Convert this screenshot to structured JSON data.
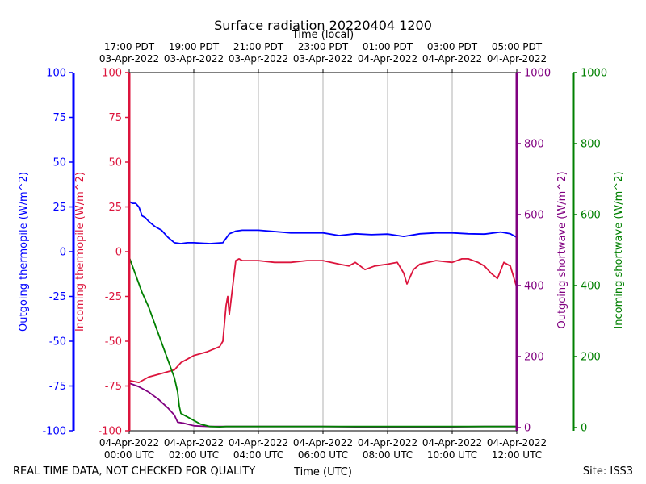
{
  "chart_data": {
    "type": "line",
    "title": "Surface radiation 20220404 1200",
    "top_xlabel": "Time (local)",
    "bottom_xlabel": "Time (UTC)",
    "footer_left": "REAL TIME DATA, NOT CHECKED FOR QUALITY",
    "footer_right": "Site: ISS3",
    "x_range_hours": [
      0,
      12
    ],
    "bottom_ticks": [
      {
        "h": 0,
        "line1": "04-Apr-2022",
        "line2": "00:00 UTC"
      },
      {
        "h": 2,
        "line1": "04-Apr-2022",
        "line2": "02:00 UTC"
      },
      {
        "h": 4,
        "line1": "04-Apr-2022",
        "line2": "04:00 UTC"
      },
      {
        "h": 6,
        "line1": "04-Apr-2022",
        "line2": "06:00 UTC"
      },
      {
        "h": 8,
        "line1": "04-Apr-2022",
        "line2": "08:00 UTC"
      },
      {
        "h": 10,
        "line1": "04-Apr-2022",
        "line2": "10:00 UTC"
      },
      {
        "h": 12,
        "line1": "04-Apr-2022",
        "line2": "12:00 UTC"
      }
    ],
    "top_ticks": [
      {
        "h": 0,
        "line1": "17:00 PDT",
        "line2": "03-Apr-2022"
      },
      {
        "h": 2,
        "line1": "19:00 PDT",
        "line2": "03-Apr-2022"
      },
      {
        "h": 4,
        "line1": "21:00 PDT",
        "line2": "03-Apr-2022"
      },
      {
        "h": 6,
        "line1": "23:00 PDT",
        "line2": "03-Apr-2022"
      },
      {
        "h": 8,
        "line1": "01:00 PDT",
        "line2": "04-Apr-2022"
      },
      {
        "h": 10,
        "line1": "03:00 PDT",
        "line2": "04-Apr-2022"
      },
      {
        "h": 12,
        "line1": "05:00 PDT",
        "line2": "04-Apr-2022"
      }
    ],
    "axes": [
      {
        "id": "outgoing-thermopile",
        "label": "Outgoing thermopile (W/m^2)",
        "color": "#0000ff",
        "ylim": [
          -100,
          100
        ],
        "ticks": [
          -100,
          -75,
          -50,
          -25,
          0,
          25,
          50,
          75,
          100
        ],
        "side": "left-outer"
      },
      {
        "id": "incoming-thermopile",
        "label": "Incoming thermopile (W/m^2)",
        "color": "#dc143c",
        "ylim": [
          -100,
          100
        ],
        "ticks": [
          -100,
          -75,
          -50,
          -25,
          0,
          25,
          50,
          75,
          100
        ],
        "side": "left-inner"
      },
      {
        "id": "outgoing-shortwave",
        "label": "Outgoing shortwave (W/m^2)",
        "color": "#800080",
        "ylim": [
          0,
          1000
        ],
        "ticks": [
          0,
          200,
          400,
          600,
          800,
          1000
        ],
        "side": "right-inner"
      },
      {
        "id": "incoming-shortwave",
        "label": "Incoming shortwave (W/m^2)",
        "color": "#008000",
        "ylim": [
          0,
          1000
        ],
        "ticks": [
          0,
          200,
          400,
          600,
          800,
          1000
        ],
        "side": "right-outer"
      }
    ],
    "series": [
      {
        "name": "Outgoing thermopile",
        "axis": "outgoing-thermopile",
        "color": "#0000ff",
        "x": [
          0,
          0.1,
          0.2,
          0.3,
          0.4,
          0.5,
          0.6,
          0.8,
          1.0,
          1.2,
          1.4,
          1.6,
          1.8,
          2.0,
          2.5,
          2.9,
          3.1,
          3.3,
          3.5,
          4.0,
          5.0,
          6.0,
          6.5,
          7.0,
          7.5,
          8.0,
          8.5,
          9.0,
          9.5,
          10.0,
          10.5,
          11.0,
          11.5,
          11.8,
          12.0
        ],
        "y": [
          28,
          27,
          27,
          25,
          20,
          19,
          17,
          14,
          12,
          8,
          5,
          4.5,
          5,
          5,
          4.5,
          5,
          10,
          11.5,
          12,
          12,
          10.5,
          10.5,
          9,
          10,
          9.5,
          9.8,
          8.5,
          10,
          10.5,
          10.5,
          10,
          9.8,
          11,
          10,
          8
        ]
      },
      {
        "name": "Incoming thermopile",
        "axis": "incoming-thermopile",
        "color": "#dc143c",
        "x": [
          0,
          0.3,
          0.6,
          1.0,
          1.4,
          1.6,
          2.0,
          2.4,
          2.8,
          2.9,
          3.0,
          3.05,
          3.1,
          3.2,
          3.3,
          3.4,
          3.5,
          4.0,
          4.5,
          5.0,
          5.5,
          6.0,
          6.5,
          6.8,
          7.0,
          7.3,
          7.6,
          8.0,
          8.3,
          8.5,
          8.6,
          8.8,
          9.0,
          9.5,
          10.0,
          10.3,
          10.5,
          10.8,
          11.0,
          11.2,
          11.4,
          11.6,
          11.8,
          12.0
        ],
        "y": [
          -72,
          -73,
          -70,
          -68,
          -66,
          -62,
          -58,
          -56,
          -53,
          -50,
          -30,
          -25,
          -35,
          -20,
          -5,
          -4,
          -5,
          -5,
          -6,
          -6,
          -5,
          -5,
          -7,
          -8,
          -6,
          -10,
          -8,
          -7,
          -6,
          -12,
          -18,
          -10,
          -7,
          -5,
          -6,
          -4,
          -4,
          -6,
          -8,
          -12,
          -15,
          -6,
          -8,
          -20
        ]
      },
      {
        "name": "Outgoing shortwave",
        "axis": "outgoing-shortwave",
        "color": "#800080",
        "x": [
          0,
          0.3,
          0.6,
          0.9,
          1.2,
          1.4,
          1.5,
          1.7,
          2.0,
          2.5,
          3.0,
          4.0,
          5.0,
          6.0,
          7.0,
          8.0,
          9.0,
          10.0,
          11.0,
          12.0
        ],
        "y": [
          125,
          115,
          100,
          80,
          55,
          35,
          15,
          12,
          5,
          3,
          3,
          3,
          3,
          3,
          2,
          2,
          2,
          2,
          3,
          3
        ]
      },
      {
        "name": "Incoming shortwave",
        "axis": "incoming-shortwave",
        "color": "#008000",
        "x": [
          0,
          0.2,
          0.4,
          0.6,
          0.8,
          1.0,
          1.2,
          1.4,
          1.5,
          1.55,
          1.6,
          1.8,
          2.0,
          2.2,
          2.5,
          2.8,
          3.0,
          3.5,
          4.0,
          5.0,
          6.0,
          7.0,
          8.0,
          9.0,
          10.0,
          11.0,
          12.0
        ],
        "y": [
          480,
          430,
          380,
          340,
          290,
          240,
          190,
          140,
          100,
          60,
          40,
          30,
          20,
          10,
          3,
          2,
          3,
          3,
          3,
          3,
          3,
          3,
          3,
          3,
          3,
          3,
          3
        ]
      }
    ]
  }
}
